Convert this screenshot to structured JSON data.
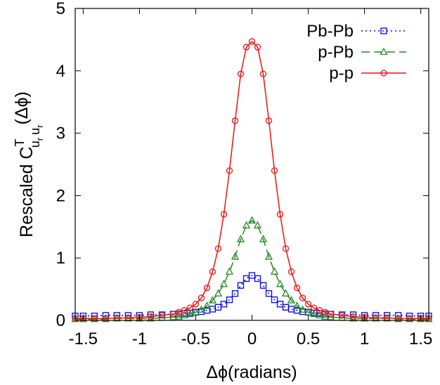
{
  "chart_data": {
    "type": "line",
    "xlabel": "Δϕ(radians)",
    "ylabel": {
      "prefix": "Rescaled C",
      "superscript": "T",
      "sub1": "u",
      "sub1_sub": "r",
      "sub2": "u",
      "sub2_sub": "r",
      "suffix": "(Δϕ)"
    },
    "xlim": [
      -1.571,
      1.571
    ],
    "ylim": [
      0,
      5
    ],
    "xticks": [
      -1.5,
      -1,
      -0.5,
      0,
      0.5,
      1,
      1.5
    ],
    "xtick_labels": [
      "-1.5",
      "-1",
      "-0.5",
      "0",
      "0.5",
      "1",
      "1.5"
    ],
    "yticks": [
      0,
      1,
      2,
      3,
      4,
      5
    ],
    "ytick_labels": [
      "0",
      "1",
      "2",
      "3",
      "4",
      "5"
    ],
    "grid": false,
    "legend_position": "top-right",
    "x": [
      -1.571,
      -1.5,
      -1.4,
      -1.3,
      -1.2,
      -1.1,
      -1.0,
      -0.9,
      -0.8,
      -0.7,
      -0.65,
      -0.6,
      -0.55,
      -0.5,
      -0.45,
      -0.4,
      -0.35,
      -0.3,
      -0.25,
      -0.2,
      -0.15,
      -0.1,
      -0.05,
      0,
      0.05,
      0.1,
      0.15,
      0.2,
      0.25,
      0.3,
      0.35,
      0.4,
      0.45,
      0.5,
      0.55,
      0.6,
      0.65,
      0.7,
      0.8,
      0.9,
      1.0,
      1.1,
      1.2,
      1.3,
      1.4,
      1.5,
      1.571
    ],
    "series": [
      {
        "name": "Pb-Pb",
        "color": "#0000ff",
        "dash": "dotted",
        "marker": "square",
        "values": [
          0.07,
          0.07,
          0.07,
          0.08,
          0.08,
          0.08,
          0.08,
          0.09,
          0.09,
          0.1,
          0.1,
          0.11,
          0.12,
          0.13,
          0.14,
          0.16,
          0.18,
          0.21,
          0.26,
          0.33,
          0.43,
          0.56,
          0.67,
          0.72,
          0.67,
          0.56,
          0.43,
          0.33,
          0.26,
          0.21,
          0.18,
          0.16,
          0.14,
          0.13,
          0.12,
          0.11,
          0.1,
          0.1,
          0.09,
          0.09,
          0.08,
          0.08,
          0.08,
          0.08,
          0.07,
          0.07,
          0.07
        ]
      },
      {
        "name": "p-Pb",
        "color": "#228b22",
        "dash": "dashed",
        "marker": "triangle",
        "values": [
          0.02,
          0.02,
          0.02,
          0.02,
          0.03,
          0.03,
          0.03,
          0.03,
          0.04,
          0.05,
          0.06,
          0.08,
          0.1,
          0.13,
          0.17,
          0.23,
          0.32,
          0.43,
          0.58,
          0.78,
          1.02,
          1.3,
          1.52,
          1.6,
          1.52,
          1.3,
          1.02,
          0.78,
          0.58,
          0.43,
          0.32,
          0.23,
          0.17,
          0.13,
          0.1,
          0.08,
          0.06,
          0.05,
          0.04,
          0.03,
          0.03,
          0.03,
          0.03,
          0.02,
          0.02,
          0.02,
          0.02
        ]
      },
      {
        "name": "p-p",
        "color": "#ee1111",
        "dash": "solid",
        "marker": "circle",
        "values": [
          0.03,
          0.03,
          0.03,
          0.03,
          0.04,
          0.04,
          0.05,
          0.06,
          0.08,
          0.1,
          0.13,
          0.16,
          0.2,
          0.26,
          0.36,
          0.52,
          0.78,
          1.15,
          1.7,
          2.4,
          3.2,
          3.95,
          4.38,
          4.47,
          4.38,
          3.95,
          3.2,
          2.4,
          1.7,
          1.15,
          0.78,
          0.52,
          0.36,
          0.26,
          0.2,
          0.16,
          0.13,
          0.1,
          0.08,
          0.06,
          0.05,
          0.04,
          0.04,
          0.03,
          0.03,
          0.03,
          0.03
        ]
      }
    ]
  }
}
